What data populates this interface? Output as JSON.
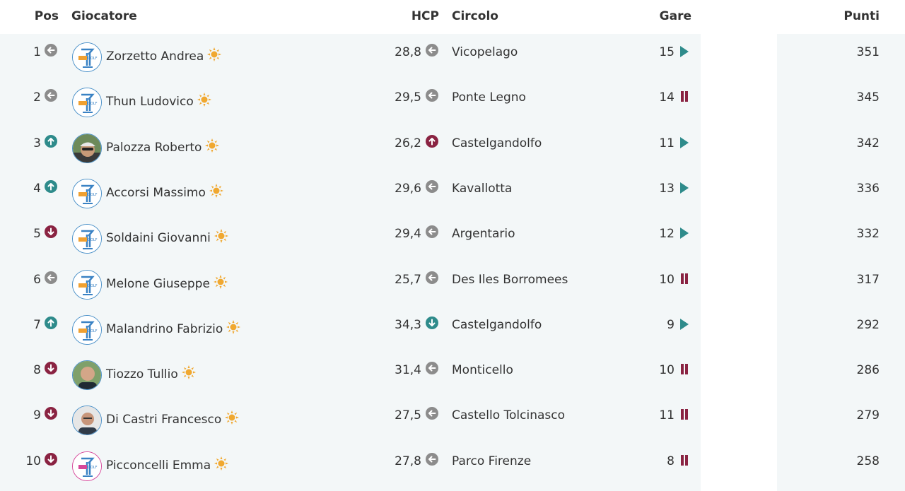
{
  "headers": {
    "pos": "Pos",
    "player": "Giocatore",
    "hcp": "HCP",
    "club": "Circolo",
    "gare": "Gare",
    "points": "Punti"
  },
  "colors": {
    "same": "#8c8c8c",
    "up": "#2e8b8b",
    "down": "#8a2342",
    "sun": "#f0a830",
    "row_bg": "#f3f7f8"
  },
  "rows": [
    {
      "pos": "1",
      "pos_trend": "same",
      "avatar": "golf-logo",
      "name": "Zorzetto Andrea",
      "hcp": "28,8",
      "hcp_trend": "same",
      "club": "Vicopelago",
      "gare": "15",
      "gare_status": "play",
      "points": "351"
    },
    {
      "pos": "2",
      "pos_trend": "same",
      "avatar": "golf-logo",
      "name": "Thun Ludovico",
      "hcp": "29,5",
      "hcp_trend": "same",
      "club": "Ponte Legno",
      "gare": "14",
      "gare_status": "pause",
      "points": "345"
    },
    {
      "pos": "3",
      "pos_trend": "up",
      "avatar": "photo-cap",
      "name": "Palozza Roberto",
      "hcp": "26,2",
      "hcp_trend": "up-red",
      "club": "Castelgandolfo",
      "gare": "11",
      "gare_status": "play",
      "points": "342"
    },
    {
      "pos": "4",
      "pos_trend": "up",
      "avatar": "golf-logo",
      "name": "Accorsi Massimo",
      "hcp": "29,6",
      "hcp_trend": "same",
      "club": "Kavallotta",
      "gare": "13",
      "gare_status": "play",
      "points": "336"
    },
    {
      "pos": "5",
      "pos_trend": "down",
      "avatar": "golf-logo",
      "name": "Soldaini Giovanni",
      "hcp": "29,4",
      "hcp_trend": "same",
      "club": "Argentario",
      "gare": "12",
      "gare_status": "play",
      "points": "332"
    },
    {
      "pos": "6",
      "pos_trend": "same",
      "avatar": "golf-logo",
      "name": "Melone Giuseppe",
      "hcp": "25,7",
      "hcp_trend": "same",
      "club": "Des Iles Borromees",
      "gare": "10",
      "gare_status": "pause",
      "points": "317"
    },
    {
      "pos": "7",
      "pos_trend": "up",
      "avatar": "golf-logo",
      "name": "Malandrino Fabrizio",
      "hcp": "34,3",
      "hcp_trend": "down-teal",
      "club": "Castelgandolfo",
      "gare": "9",
      "gare_status": "play",
      "points": "292"
    },
    {
      "pos": "8",
      "pos_trend": "down",
      "avatar": "photo-bald",
      "name": "Tiozzo Tullio",
      "hcp": "31,4",
      "hcp_trend": "same",
      "club": "Monticello",
      "gare": "10",
      "gare_status": "pause",
      "points": "286"
    },
    {
      "pos": "9",
      "pos_trend": "down",
      "avatar": "photo-portrait",
      "name": "Di Castri Francesco",
      "hcp": "27,5",
      "hcp_trend": "same",
      "club": "Castello Tolcinasco",
      "gare": "11",
      "gare_status": "pause",
      "points": "279"
    },
    {
      "pos": "10",
      "pos_trend": "down",
      "avatar": "golf-logo-pink",
      "name": "Picconcelli Emma",
      "hcp": "27,8",
      "hcp_trend": "same",
      "club": "Parco Firenze",
      "gare": "8",
      "gare_status": "pause",
      "points": "258"
    }
  ]
}
